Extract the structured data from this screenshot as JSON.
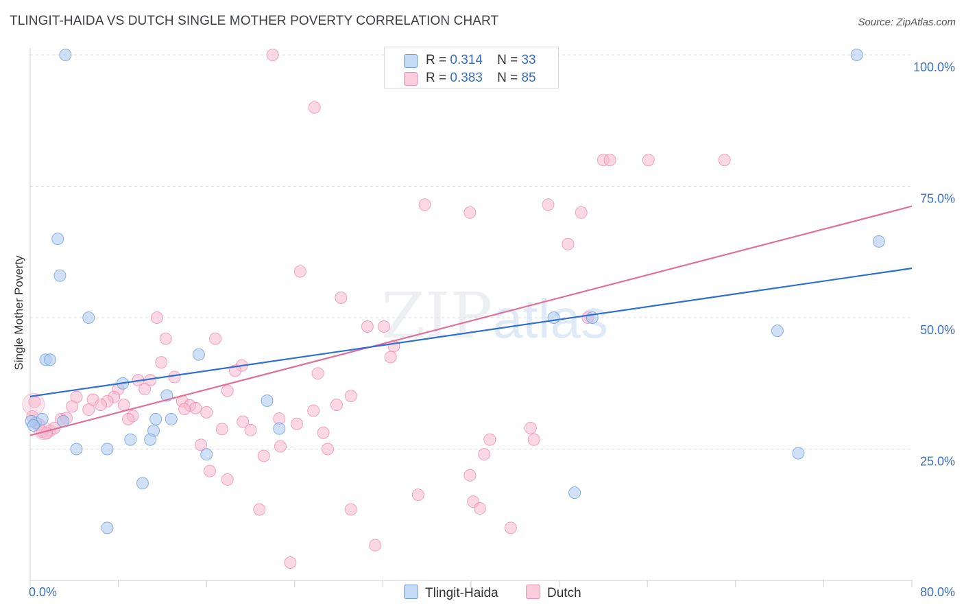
{
  "header": {
    "title": "TLINGIT-HAIDA VS DUTCH SINGLE MOTHER POVERTY CORRELATION CHART",
    "source": "Source: ZipAtlas.com"
  },
  "legend": {
    "rows": [
      {
        "r_label": "R =",
        "r_value": "0.314",
        "n_label": "N =",
        "n_value": "33"
      },
      {
        "r_label": "R =",
        "r_value": "0.383",
        "n_label": "N =",
        "n_value": "85"
      }
    ],
    "series": [
      "Tlingit-Haida",
      "Dutch"
    ]
  },
  "colors": {
    "blue_fill": "#aac8f0",
    "blue_stroke": "#6f9fdb",
    "blue_line": "#2f6fd0",
    "pink_fill": "#f7b8cd",
    "pink_stroke": "#ec8fb0",
    "pink_line": "#e0709a",
    "tick_text": "#3b6fc4",
    "grid": "#d8d8d8"
  },
  "watermark": {
    "zip": "ZIP",
    "atlas": "atlas"
  },
  "chart_data": {
    "type": "scatter",
    "ylabel": "Single Mother Poverty",
    "xlabel": "",
    "xlim": [
      0,
      80
    ],
    "ylim": [
      0,
      105
    ],
    "x_ticks": [
      "0.0%",
      "80.0%"
    ],
    "y_ticks": [
      {
        "value": 25,
        "label": "25.0%"
      },
      {
        "value": 50,
        "label": "50.0%"
      },
      {
        "value": 75,
        "label": "75.0%"
      },
      {
        "value": 100,
        "label": "100.0%"
      }
    ],
    "series": [
      {
        "name": "Tlingit-Haida",
        "trend": {
          "x0": 0,
          "y0": 35,
          "x1": 80,
          "y1": 59.4
        },
        "points": [
          [
            3.2,
            100
          ],
          [
            75,
            100
          ],
          [
            2.5,
            65
          ],
          [
            2.7,
            58
          ],
          [
            5.3,
            50
          ],
          [
            1.4,
            42
          ],
          [
            1.8,
            42
          ],
          [
            15.3,
            43
          ],
          [
            8.4,
            37.5
          ],
          [
            12.4,
            35.2
          ],
          [
            21.5,
            34.2
          ],
          [
            0.5,
            30
          ],
          [
            1.1,
            30.7
          ],
          [
            3.0,
            30.3
          ],
          [
            11.4,
            30.7
          ],
          [
            12.8,
            30.7
          ],
          [
            11.2,
            28.5
          ],
          [
            22.6,
            28.9
          ],
          [
            9.1,
            26.8
          ],
          [
            10.9,
            26.8
          ],
          [
            4.2,
            25
          ],
          [
            7.0,
            25
          ],
          [
            16.0,
            24
          ],
          [
            10.2,
            18.5
          ],
          [
            7.0,
            10
          ],
          [
            47.5,
            50
          ],
          [
            51.0,
            50
          ],
          [
            67.8,
            47.5
          ],
          [
            77.0,
            64.5
          ],
          [
            69.7,
            24.2
          ],
          [
            49.4,
            16.7
          ],
          [
            0.1,
            30.3
          ],
          [
            0.3,
            29.5
          ]
        ]
      },
      {
        "name": "Dutch",
        "trend": {
          "x0": 0,
          "y0": 27.6,
          "x1": 80,
          "y1": 71.2
        },
        "points": [
          [
            22.0,
            100
          ],
          [
            35.0,
            100
          ],
          [
            36.0,
            100
          ],
          [
            25.8,
            90
          ],
          [
            52.0,
            80
          ],
          [
            52.6,
            80
          ],
          [
            56.1,
            80
          ],
          [
            63.0,
            80
          ],
          [
            35.8,
            71.5
          ],
          [
            47.0,
            71.5
          ],
          [
            39.9,
            70
          ],
          [
            50.0,
            70
          ],
          [
            48.8,
            64
          ],
          [
            24.5,
            58.8
          ],
          [
            28.2,
            53.8
          ],
          [
            11.5,
            50
          ],
          [
            30.6,
            48.3
          ],
          [
            32.1,
            48.3
          ],
          [
            50.6,
            50
          ],
          [
            12.3,
            46
          ],
          [
            16.8,
            46
          ],
          [
            33.0,
            44.6
          ],
          [
            32.7,
            42.5
          ],
          [
            11.9,
            41.5
          ],
          [
            19.2,
            40.9
          ],
          [
            18.6,
            39.9
          ],
          [
            26.1,
            39.4
          ],
          [
            13.1,
            38.7
          ],
          [
            9.8,
            38.1
          ],
          [
            10.9,
            38.1
          ],
          [
            10.4,
            36.4
          ],
          [
            8.0,
            36.4
          ],
          [
            17.9,
            36.1
          ],
          [
            29.1,
            35.1
          ],
          [
            4.2,
            34.9
          ],
          [
            7.6,
            34.9
          ],
          [
            5.7,
            34.4
          ],
          [
            7.0,
            34.1
          ],
          [
            13.8,
            34.1
          ],
          [
            6.4,
            33.4
          ],
          [
            8.5,
            33.4
          ],
          [
            14.5,
            33.3
          ],
          [
            27.8,
            33.4
          ],
          [
            3.8,
            33.1
          ],
          [
            15.0,
            32.8
          ],
          [
            14.0,
            32.6
          ],
          [
            5.3,
            32.5
          ],
          [
            25.7,
            32.3
          ],
          [
            16.0,
            32
          ],
          [
            9.3,
            31.3
          ],
          [
            8.9,
            30.7
          ],
          [
            19.3,
            30.2
          ],
          [
            22.6,
            30.8
          ],
          [
            2.8,
            30.7
          ],
          [
            24.2,
            29.8
          ],
          [
            3.3,
            30.9
          ],
          [
            17.4,
            28.8
          ],
          [
            20.0,
            28.6
          ],
          [
            45.4,
            29
          ],
          [
            26.6,
            28.1
          ],
          [
            1.8,
            28.5
          ],
          [
            2.2,
            29
          ],
          [
            1.1,
            28.3
          ],
          [
            41.7,
            26.8
          ],
          [
            45.7,
            26.8
          ],
          [
            15.5,
            25.8
          ],
          [
            22.7,
            25.5
          ],
          [
            27.0,
            25
          ],
          [
            21.2,
            23.7
          ],
          [
            41.2,
            24
          ],
          [
            16.3,
            20.8
          ],
          [
            17.9,
            19.2
          ],
          [
            39.9,
            20
          ],
          [
            35.2,
            16.3
          ],
          [
            40.2,
            15
          ],
          [
            40.8,
            13.7
          ],
          [
            20.8,
            13.5
          ],
          [
            29.1,
            13.5
          ],
          [
            43.6,
            10
          ],
          [
            31.3,
            6.7
          ],
          [
            23.6,
            3.4
          ],
          [
            0.4,
            34
          ],
          [
            0.8,
            29.7
          ],
          [
            1.5,
            28.0
          ],
          [
            0.2,
            31.2
          ]
        ]
      }
    ]
  }
}
